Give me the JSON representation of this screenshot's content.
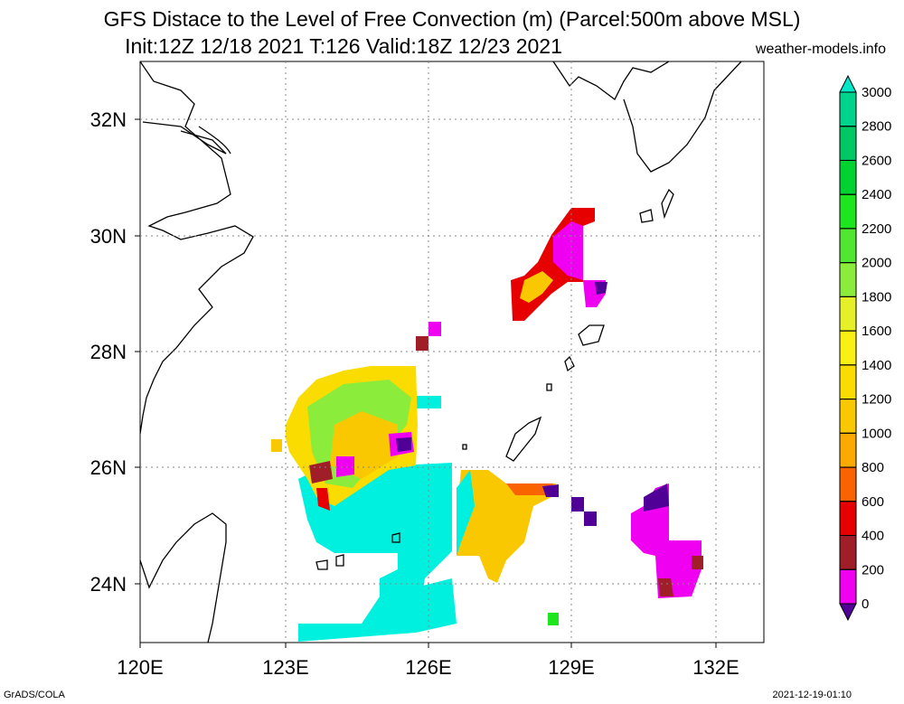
{
  "title_line1": "GFS Distace to the Level of Free Convection (m) (Parcel:500m above MSL)",
  "title_line2": "Init:12Z 12/18 2021 T:126 Valid:18Z 12/23 2021",
  "source": "weather-models.info",
  "footer_left": "GrADS/COLA",
  "footer_right": "2021-12-19-01:10",
  "lon_labels": [
    "120E",
    "123E",
    "126E",
    "129E",
    "132E"
  ],
  "lat_labels": [
    "32N",
    "30N",
    "28N",
    "26N",
    "24N"
  ],
  "colorbar": {
    "labels": [
      "3000",
      "2800",
      "2600",
      "2400",
      "2200",
      "2000",
      "1800",
      "1600",
      "1400",
      "1200",
      "1000",
      "800",
      "600",
      "400",
      "200",
      "0"
    ],
    "colors": [
      "#00e8c8",
      "#00d48c",
      "#00c864",
      "#00d232",
      "#1ee61e",
      "#50e632",
      "#8cec3c",
      "#e6f028",
      "#faf014",
      "#fadc00",
      "#fac800",
      "#faaa00",
      "#fa6400",
      "#e60000",
      "#a01e28",
      "#f000f0",
      "#500096"
    ]
  }
}
